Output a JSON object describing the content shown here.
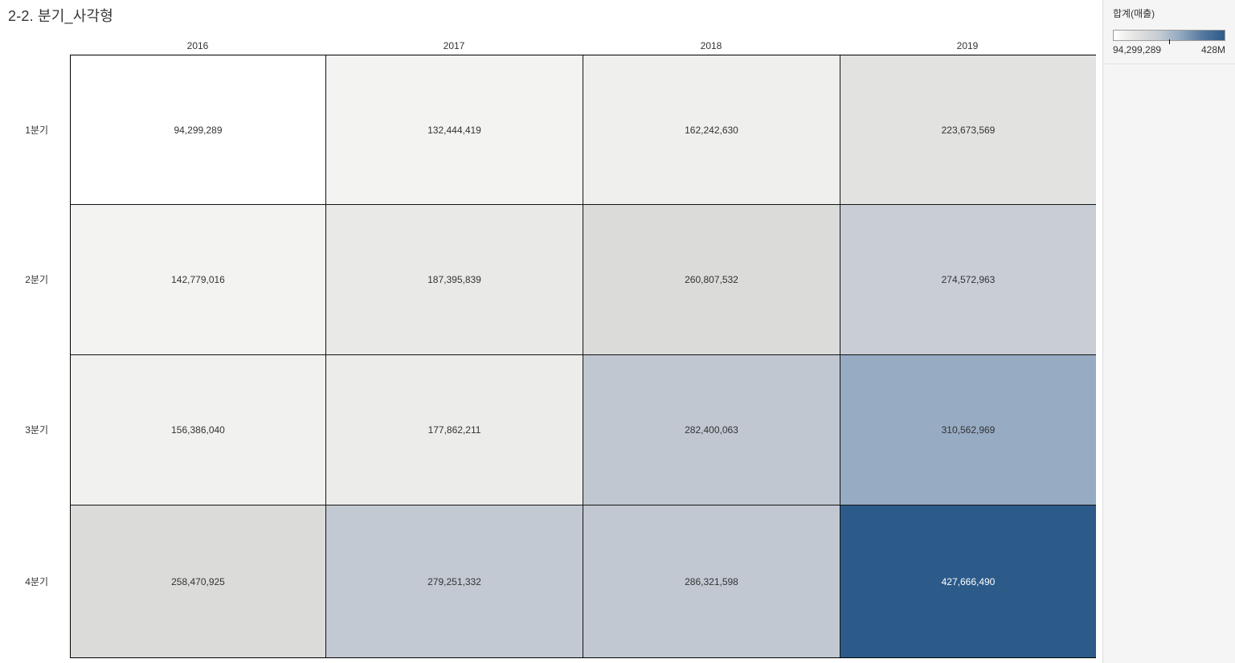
{
  "title": "2-2. 분기_사각형",
  "legend": {
    "title": "합계(매출)",
    "min_label": "94,299,289",
    "max_label": "428M",
    "gradient_stops": [
      "#FFFFFF",
      "#E3E3E1",
      "#C7CDD5",
      "#93A9C1",
      "#56799F",
      "#2C5B8A"
    ]
  },
  "chart_data": {
    "type": "heatmap",
    "title": "2-2. 분기_사각형",
    "columns": [
      "2016",
      "2017",
      "2018",
      "2019"
    ],
    "rows": [
      "1분기",
      "2분기",
      "3분기",
      "4분기"
    ],
    "measure": "합계(매출)",
    "color_range": {
      "min": 94299289,
      "max": 428000000,
      "min_color": "#FFFFFF",
      "max_color": "#2C5B8A"
    },
    "values": [
      [
        "94,299,289",
        "132,444,419",
        "162,242,630",
        "223,673,569"
      ],
      [
        "142,779,016",
        "187,395,839",
        "260,807,532",
        "274,572,963"
      ],
      [
        "156,386,040",
        "177,862,211",
        "282,400,063",
        "310,562,969"
      ],
      [
        "258,470,925",
        "279,251,332",
        "286,321,598",
        "427,666,490"
      ]
    ],
    "numeric_values": [
      [
        94299289,
        132444419,
        162242630,
        223673569
      ],
      [
        142779016,
        187395839,
        260807532,
        274572963
      ],
      [
        156386040,
        177862211,
        282400063,
        310562969
      ],
      [
        258470925,
        279251332,
        286321598,
        427666490
      ]
    ],
    "cell_colors": [
      [
        "#FFFFFF",
        "#F3F3F2",
        "#EFEFEE",
        "#E2E2E0"
      ],
      [
        "#F3F3F2",
        "#E9E9E8",
        "#DBDBDA",
        "#C8CDD6"
      ],
      [
        "#F1F1F0",
        "#ECECEB",
        "#C0C7D1",
        "#97ABC3"
      ],
      [
        "#DBDBDA",
        "#C3C9D2",
        "#C1C8D2",
        "#2C5B8A"
      ]
    ],
    "text_colors": [
      [
        "#333333",
        "#333333",
        "#333333",
        "#333333"
      ],
      [
        "#333333",
        "#333333",
        "#333333",
        "#333333"
      ],
      [
        "#333333",
        "#333333",
        "#333333",
        "#333333"
      ],
      [
        "#333333",
        "#333333",
        "#333333",
        "#FFFFFF"
      ]
    ]
  }
}
